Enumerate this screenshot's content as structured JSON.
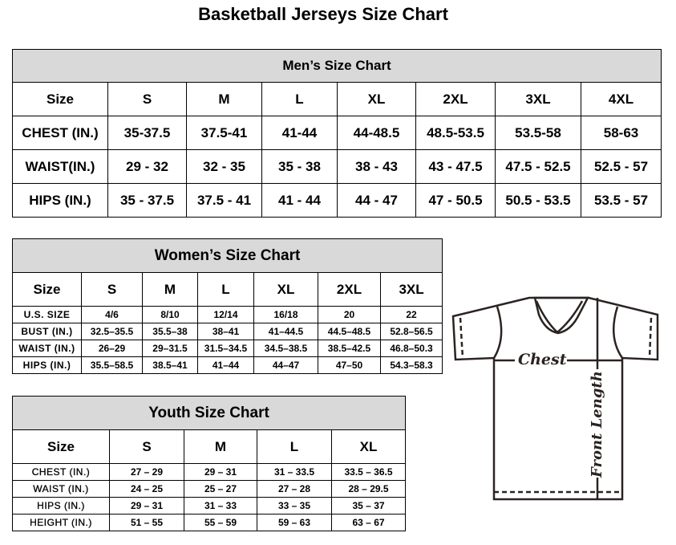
{
  "title": "Basketball Jerseys Size Chart",
  "men": {
    "heading": "Men’s Size Chart",
    "columns": [
      "Size",
      "S",
      "M",
      "L",
      "XL",
      "2XL",
      "3XL",
      "4XL"
    ],
    "rows": [
      [
        "CHEST (IN.)",
        "35-37.5",
        "37.5-41",
        "41-44",
        "44-48.5",
        "48.5-53.5",
        "53.5-58",
        "58-63"
      ],
      [
        "WAIST(IN.)",
        "29 - 32",
        "32 - 35",
        "35 - 38",
        "38 - 43",
        "43 - 47.5",
        "47.5 - 52.5",
        "52.5 - 57"
      ],
      [
        "HIPS (IN.)",
        "35 - 37.5",
        "37.5 - 41",
        "41 - 44",
        "44 - 47",
        "47 - 50.5",
        "50.5 - 53.5",
        "53.5 - 57"
      ]
    ]
  },
  "women": {
    "heading": "Women’s Size Chart",
    "columns": [
      "Size",
      "S",
      "M",
      "L",
      "XL",
      "2XL",
      "3XL"
    ],
    "rows": [
      [
        "U.S.  SIZE",
        "4/6",
        "8/10",
        "12/14",
        "16/18",
        "20",
        "22"
      ],
      [
        "BUST  (IN.)",
        "32.5–35.5",
        "35.5–38",
        "38–41",
        "41–44.5",
        "44.5–48.5",
        "52.8–56.5"
      ],
      [
        "WAIST  (IN.)",
        "26–29",
        "29–31.5",
        "31.5–34.5",
        "34.5–38.5",
        "38.5–42.5",
        "46.8–50.3"
      ],
      [
        "HIPS  (IN.)",
        "35.5–58.5",
        "38.5–41",
        "41–44",
        "44–47",
        "47–50",
        "54.3–58.3"
      ]
    ]
  },
  "youth": {
    "heading": "Youth Size Chart",
    "columns": [
      "Size",
      "S",
      "M",
      "L",
      "XL"
    ],
    "rows": [
      [
        "CHEST  (IN.)",
        "27  –  29",
        "29  –  31",
        "31  –  33.5",
        "33.5  –  36.5"
      ],
      [
        "WAIST  (IN.)",
        "24  –  25",
        "25  –  27",
        "27  –  28",
        "28  –  29.5"
      ],
      [
        "HIPS  (IN.)",
        "29  –  31",
        "31  –  33",
        "33  –  35",
        "35  –  37"
      ],
      [
        "HEIGHT  (IN.)",
        "51  –  55",
        "55  –  59",
        "59  –  63",
        "63  –  67"
      ]
    ]
  },
  "diagram": {
    "chest_label": "Chest",
    "length_label": "Front Length"
  }
}
